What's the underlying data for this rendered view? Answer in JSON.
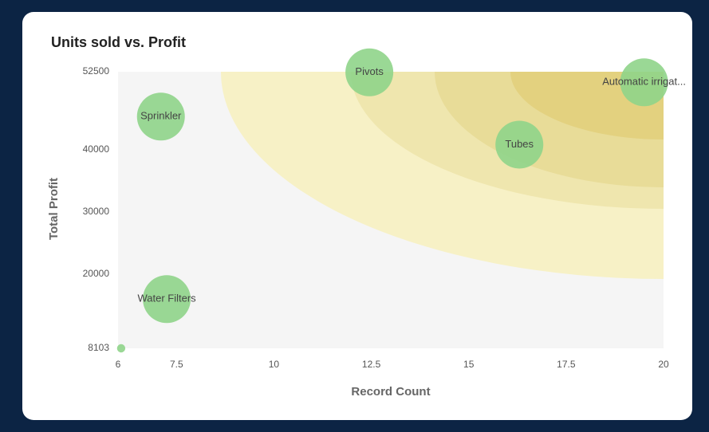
{
  "chart_data": {
    "type": "scatter",
    "title": "Units sold vs. Profit",
    "xlabel": "Record Count",
    "ylabel": "Total Profit",
    "labels": [
      "Sprinkler",
      "Pivots",
      "Tubes",
      "Automatic irrigat...",
      "Water Filters",
      null
    ],
    "x": [
      7.1,
      12.45,
      16.3,
      19.5,
      7.25,
      6.08
    ],
    "values": [
      45300,
      52400,
      40800,
      50800,
      16000,
      8103
    ],
    "sizes": [
      100,
      100,
      100,
      100,
      100,
      3
    ],
    "color": "#8fd48a",
    "xlim": [
      6,
      20
    ],
    "xticks": [
      6,
      7.5,
      10,
      12.5,
      15,
      17.5,
      20
    ],
    "ylim": [
      8103,
      52500
    ],
    "yticks": [
      8103,
      20000,
      30000,
      40000,
      52500
    ]
  }
}
